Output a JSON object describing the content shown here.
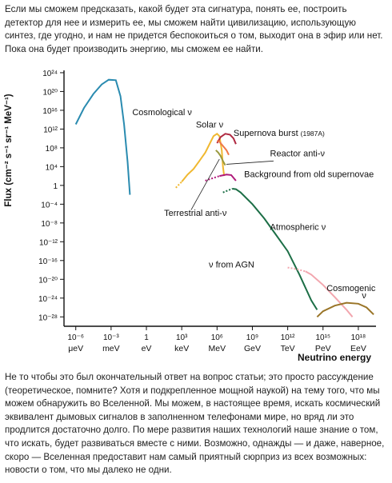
{
  "article": {
    "intro": "Если мы сможем предсказать, какой будет эта сигнатура, понять ее, построить детектор для нее и измерить ее, мы сможем найти цивилизацию, использующую синтез, где угодно, и нам не придется беспокоиться о том, выходит она в эфир или нет. Пока она будет производить энергию, мы сможем ее найти.",
    "outro": "Не то чтобы это был окончательный ответ на вопрос статьи; это просто рассуждение (теоретическое, помните? Хотя и подкрепленное мощной наукой) на тему того, что мы можем обнаружить во Вселенной. Мы можем, в настоящее время, искать космический эквивалент дымовых сигналов в заполненном телефонами мире, но вряд ли это продлится достаточно долго. По мере развития наших технологий наше знание о том, что искать, будет развиваться вместе с ними. Возможно, однажды — и даже, наверное, скоро — Вселенная предоставит нам самый приятный сюрприз из всех возможных: новости о том, что мы далеко не одни."
  },
  "chart_data": {
    "type": "line",
    "title": "",
    "xlabel": "Neutrino energy",
    "ylabel": "Flux (cm⁻² s⁻¹ sr⁻¹ MeV⁻¹)",
    "x_scale": "log10 (eV)",
    "y_scale": "log10",
    "xlim_log10_eV": [
      -7,
      19.5
    ],
    "ylim_log10": [
      -30,
      24.5
    ],
    "x_ticks": [
      {
        "log": -6,
        "exp": "10⁻⁶",
        "unit": "μeV"
      },
      {
        "log": -3,
        "exp": "10⁻³",
        "unit": "meV"
      },
      {
        "log": 0,
        "exp": "1",
        "unit": "eV"
      },
      {
        "log": 3,
        "exp": "10³",
        "unit": "keV"
      },
      {
        "log": 6,
        "exp": "10⁶",
        "unit": "MeV"
      },
      {
        "log": 9,
        "exp": "10⁹",
        "unit": "GeV"
      },
      {
        "log": 12,
        "exp": "10¹²",
        "unit": "TeV"
      },
      {
        "log": 15,
        "exp": "10¹⁵",
        "unit": "PeV"
      },
      {
        "log": 18,
        "exp": "10¹⁸",
        "unit": "EeV"
      }
    ],
    "y_ticks": [
      {
        "log": 24,
        "label": "10²⁴"
      },
      {
        "log": 20,
        "label": "10²⁰"
      },
      {
        "log": 16,
        "label": "10¹⁶"
      },
      {
        "log": 12,
        "label": "10¹²"
      },
      {
        "log": 8,
        "label": "10⁸"
      },
      {
        "log": 4,
        "label": "10⁴"
      },
      {
        "log": 0,
        "label": "1"
      },
      {
        "log": -4,
        "label": "10⁻⁴"
      },
      {
        "log": -8,
        "label": "10⁻⁸"
      },
      {
        "log": -12,
        "label": "10⁻¹²"
      },
      {
        "log": -16,
        "label": "10⁻¹⁶"
      },
      {
        "log": -20,
        "label": "10⁻²⁰"
      },
      {
        "log": -24,
        "label": "10⁻²⁴"
      },
      {
        "log": -28,
        "label": "10⁻²⁸"
      }
    ],
    "series": [
      {
        "name": "Cosmological ν",
        "color": "#2a8bb0",
        "dashed_from": null,
        "points": [
          [
            -6,
            13
          ],
          [
            -5.3,
            16.5
          ],
          [
            -4.5,
            19.5
          ],
          [
            -3.8,
            21.5
          ],
          [
            -3.2,
            22.5
          ],
          [
            -2.6,
            22.4
          ],
          [
            -2.2,
            19
          ],
          [
            -1.9,
            13
          ],
          [
            -1.6,
            5
          ],
          [
            -1.4,
            -2
          ]
        ]
      },
      {
        "name": "Solar ν",
        "color": "#f0b830",
        "dashed_from": 3,
        "points": [
          [
            2.5,
            -0.5
          ],
          [
            3,
            0.8
          ],
          [
            3.5,
            2.3
          ],
          [
            4,
            3.5
          ],
          [
            4.5,
            5.2
          ],
          [
            5,
            7
          ],
          [
            5.4,
            9
          ],
          [
            5.7,
            10.5
          ],
          [
            6,
            11
          ],
          [
            6.2,
            10.5
          ],
          [
            6.4,
            7.5
          ],
          [
            6.5,
            4
          ],
          [
            6.6,
            2
          ]
        ]
      },
      {
        "name": "Supernova burst (1987A)",
        "color": "#b02a42",
        "dashed_from": null,
        "points": [
          [
            6,
            9
          ],
          [
            6.3,
            10.3
          ],
          [
            6.7,
            11
          ],
          [
            7.1,
            10.8
          ],
          [
            7.4,
            10
          ],
          [
            7.6,
            8.8
          ]
        ]
      },
      {
        "name": "Reactor anti-ν",
        "color": "#f07848",
        "dashed_from": null,
        "points": [
          [
            6,
            9.5
          ],
          [
            6.2,
            9.3
          ],
          [
            6.5,
            8.4
          ],
          [
            6.8,
            7.5
          ],
          [
            7.0,
            6.5
          ]
        ]
      },
      {
        "name": "Terrestrial anti-ν",
        "color": "#9a9a40",
        "dashed_from": null,
        "points": [
          [
            5.9,
            7.5
          ],
          [
            6.1,
            7.0
          ],
          [
            6.3,
            6.3
          ],
          [
            6.5,
            5.2
          ],
          [
            6.7,
            4.3
          ]
        ]
      },
      {
        "name": "Background from old supernovae",
        "color": "#b01a7a",
        "dashed_from": 6.2,
        "points": [
          [
            5,
            1
          ],
          [
            5.6,
            1.5
          ],
          [
            6.2,
            2
          ],
          [
            6.8,
            2.3
          ],
          [
            7.2,
            2.2
          ],
          [
            7.6,
            1
          ]
        ]
      },
      {
        "name": "Atmospheric ν",
        "color": "#1c6e46",
        "dashed_from": 7.3,
        "points": [
          [
            6.5,
            -1.5
          ],
          [
            7,
            -1
          ],
          [
            7.3,
            -0.7
          ],
          [
            7.6,
            -0.8
          ],
          [
            8,
            -1.5
          ],
          [
            9,
            -4
          ],
          [
            10,
            -7
          ],
          [
            11,
            -10.5
          ],
          [
            12,
            -14
          ],
          [
            13,
            -19
          ],
          [
            14,
            -24.5
          ],
          [
            14.5,
            -26.5
          ]
        ]
      },
      {
        "name": "ν from AGN",
        "color": "#f2a6ae",
        "dashed_from": 13.5,
        "points": [
          [
            12,
            -17.5
          ],
          [
            12.5,
            -17.7
          ],
          [
            13,
            -18
          ],
          [
            13.5,
            -18.3
          ],
          [
            14,
            -19
          ],
          [
            15,
            -21.2
          ],
          [
            16,
            -23.8
          ],
          [
            17,
            -26.5
          ],
          [
            17.5,
            -28
          ]
        ]
      },
      {
        "name": "Cosmogenic ν",
        "color": "#9a7528",
        "dashed_from": null,
        "points": [
          [
            14.5,
            -28
          ],
          [
            15,
            -26.8
          ],
          [
            16,
            -25.6
          ],
          [
            17,
            -25
          ],
          [
            18,
            -25.2
          ],
          [
            18.7,
            -26
          ],
          [
            19.3,
            -27.5
          ]
        ]
      }
    ],
    "annotations": [
      {
        "text": "Cosmological ν",
        "x": -1.2,
        "y": 15
      },
      {
        "text": "Solar ν",
        "x": 4.2,
        "y": 12.3
      },
      {
        "text": "Supernova burst",
        "small": "(1987A)",
        "x": 7.4,
        "y": 10.5
      },
      {
        "text": "Reactor anti-ν",
        "x": 10.5,
        "y": 6.2
      },
      {
        "text": "Background from old supernovae",
        "x": 8.3,
        "y": 1.8
      },
      {
        "text": "Terrestrial anti-ν",
        "x": 1.5,
        "y": -6.5
      },
      {
        "text": "Atmospheric ν",
        "x": 10.5,
        "y": -9.5
      },
      {
        "text": "ν from AGN",
        "x": 5.3,
        "y": -17.5
      },
      {
        "text": "Cosmogenic",
        "x": 15.3,
        "y": -22.5
      },
      {
        "text": "ν",
        "x": 18.3,
        "y": -24
      }
    ],
    "pointers": [
      {
        "from": [
          10.8,
          5.2
        ],
        "to": [
          6.8,
          4.5
        ]
      },
      {
        "from": [
          3.8,
          -5.2
        ],
        "to": [
          6.2,
          5.6
        ]
      }
    ],
    "grid": false,
    "legend": "none (inline labels)"
  }
}
